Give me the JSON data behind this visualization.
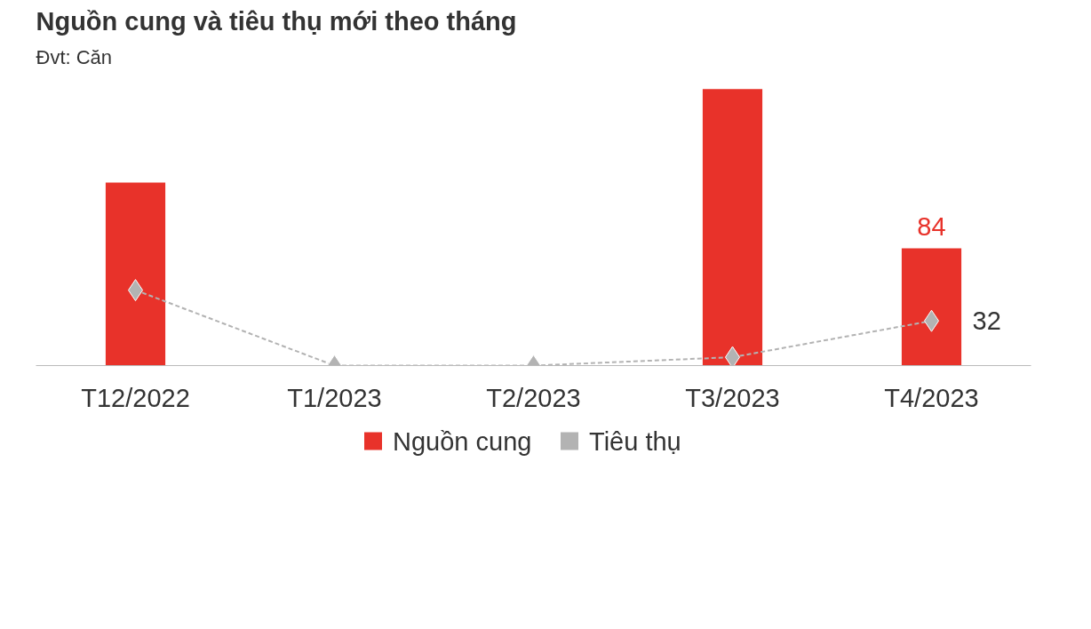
{
  "chart_data": {
    "type": "bar",
    "title": "Nguồn cung và tiêu thụ mới theo tháng",
    "subtitle": "Đvt: Căn",
    "categories": [
      "T12/2022",
      "T1/2023",
      "T2/2023",
      "T3/2023",
      "T4/2023"
    ],
    "tick_labels": "x",
    "grid": false,
    "legend": "bottom",
    "series": [
      {
        "name": "Nguồn cung",
        "color": "#e8322a",
        "values": [
          131,
          null,
          null,
          198,
          84
        ],
        "value_labels": [
          null,
          null,
          null,
          null,
          "84"
        ]
      },
      {
        "name": "Tiêu thụ",
        "type": "line",
        "color": "#b3b3b3",
        "marker": "diamond",
        "line_style": "dashed",
        "values": [
          54,
          0,
          0,
          6,
          32
        ],
        "value_labels": [
          null,
          null,
          null,
          null,
          "32"
        ]
      }
    ]
  }
}
